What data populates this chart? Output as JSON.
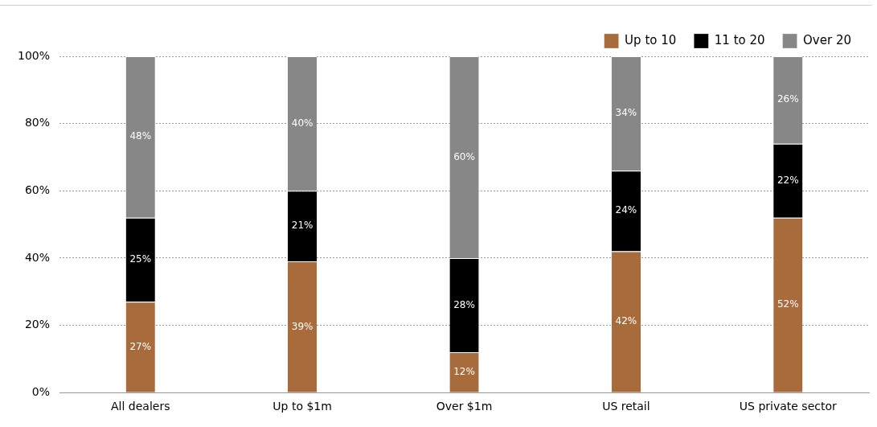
{
  "chart_data": {
    "type": "bar",
    "stacked": true,
    "categories": [
      "All dealers",
      "Up to $1m",
      "Over $1m",
      "US retail",
      "US private sector"
    ],
    "series": [
      {
        "name": "Up to 10",
        "color": "#a86b3c",
        "values": [
          27,
          39,
          12,
          42,
          52
        ],
        "value_labels": [
          "27%",
          "39%",
          "12%",
          "42%",
          "52%"
        ]
      },
      {
        "name": "11 to 20",
        "color": "#000000",
        "values": [
          25,
          21,
          28,
          24,
          22
        ],
        "value_labels": [
          "25%",
          "21%",
          "28%",
          "24%",
          "22%"
        ]
      },
      {
        "name": "Over 20",
        "color": "#878787",
        "values": [
          48,
          40,
          60,
          34,
          26
        ],
        "value_labels": [
          "48%",
          "40%",
          "60%",
          "34%",
          "26%"
        ]
      }
    ],
    "ylim": [
      0,
      100
    ],
    "yticks": [
      {
        "value": 0,
        "label": "0%"
      },
      {
        "value": 20,
        "label": "20%"
      },
      {
        "value": 40,
        "label": "40%"
      },
      {
        "value": 60,
        "label": "60%"
      },
      {
        "value": 80,
        "label": "80%"
      },
      {
        "value": 100,
        "label": "100%"
      }
    ],
    "grid": "y",
    "legend": "top right"
  }
}
